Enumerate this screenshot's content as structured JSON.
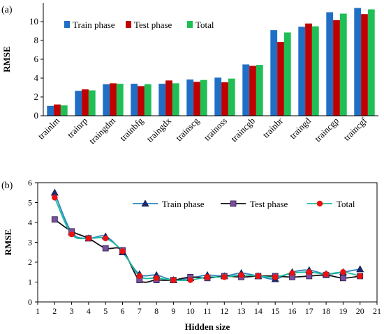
{
  "chart_data": [
    {
      "panel_label": "(a)",
      "type": "bar",
      "ylabel": "RMSE",
      "xlabel": "",
      "ylim": [
        0,
        12
      ],
      "yticks": [
        0,
        2,
        4,
        6,
        8,
        10
      ],
      "legend_position": "top-left",
      "categories": [
        "trainlm",
        "trainrp",
        "traingdm",
        "trainbfg",
        "traingdx",
        "trainscg",
        "trainoss",
        "traincgb",
        "trainbr",
        "traingd",
        "traincgp",
        "traincgf"
      ],
      "series": [
        {
          "name": "Train phase",
          "color": "#1f6fc6",
          "values": [
            1.05,
            2.65,
            3.35,
            3.4,
            3.4,
            3.85,
            4.05,
            5.45,
            9.1,
            9.45,
            11.0,
            11.45
          ]
        },
        {
          "name": "Test phase",
          "color": "#c00000",
          "values": [
            1.2,
            2.8,
            3.45,
            3.15,
            3.75,
            3.6,
            3.55,
            5.3,
            7.85,
            9.8,
            10.15,
            10.8
          ]
        },
        {
          "name": "Total",
          "color": "#1fbf55",
          "values": [
            1.1,
            2.7,
            3.4,
            3.35,
            3.45,
            3.8,
            3.95,
            5.4,
            8.85,
            9.5,
            10.85,
            11.3
          ]
        }
      ]
    },
    {
      "panel_label": "(b)",
      "type": "line",
      "xlabel": "Hidden size",
      "ylabel": "RMSE",
      "xlim": [
        1,
        21
      ],
      "ylim": [
        0,
        6
      ],
      "xticks": [
        1,
        2,
        3,
        4,
        5,
        6,
        7,
        8,
        9,
        10,
        11,
        12,
        13,
        14,
        15,
        16,
        17,
        18,
        19,
        20,
        21
      ],
      "yticks": [
        0,
        1,
        2,
        3,
        4,
        5,
        6
      ],
      "legend_position": "top-center",
      "x": [
        2,
        3,
        4,
        5,
        6,
        7,
        8,
        9,
        10,
        11,
        12,
        13,
        14,
        15,
        16,
        17,
        18,
        19,
        20
      ],
      "series": [
        {
          "name": "Train phase",
          "line_color": "#2e86c1",
          "marker": "triangle",
          "marker_color": "#1a2a6c",
          "values": [
            5.5,
            3.5,
            3.2,
            3.3,
            2.5,
            1.4,
            1.35,
            1.1,
            1.2,
            1.35,
            1.3,
            1.45,
            1.3,
            1.15,
            1.5,
            1.6,
            1.4,
            1.5,
            1.65
          ]
        },
        {
          "name": "Test phase",
          "line_color": "#111111",
          "marker": "square",
          "marker_color": "#7b4fa0",
          "values": [
            4.15,
            3.55,
            3.2,
            2.7,
            2.6,
            1.1,
            1.1,
            1.1,
            1.25,
            1.2,
            1.3,
            1.25,
            1.3,
            1.3,
            1.25,
            1.3,
            1.35,
            1.2,
            1.3
          ]
        },
        {
          "name": "Total",
          "line_color": "#1abc9c",
          "marker": "circle",
          "marker_color": "#ee1111",
          "values": [
            5.25,
            3.4,
            3.2,
            3.2,
            2.55,
            1.3,
            1.2,
            1.1,
            1.1,
            1.25,
            1.25,
            1.35,
            1.3,
            1.25,
            1.45,
            1.5,
            1.4,
            1.5,
            1.3
          ]
        }
      ]
    }
  ]
}
